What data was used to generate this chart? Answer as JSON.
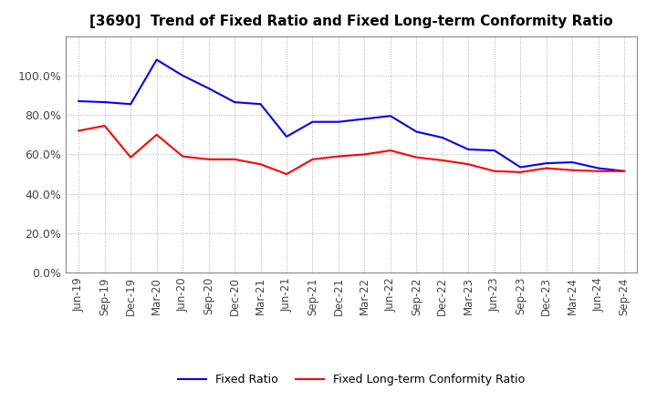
{
  "title": "[3690]  Trend of Fixed Ratio and Fixed Long-term Conformity Ratio",
  "x_labels": [
    "Jun-19",
    "Sep-19",
    "Dec-19",
    "Mar-20",
    "Jun-20",
    "Sep-20",
    "Dec-20",
    "Mar-21",
    "Jun-21",
    "Sep-21",
    "Dec-21",
    "Mar-22",
    "Jun-22",
    "Sep-22",
    "Dec-22",
    "Mar-23",
    "Jun-23",
    "Sep-23",
    "Dec-23",
    "Mar-24",
    "Jun-24",
    "Sep-24"
  ],
  "fixed_ratio": [
    87.0,
    86.5,
    85.5,
    108.0,
    100.0,
    93.5,
    86.5,
    85.5,
    69.0,
    76.5,
    76.5,
    78.0,
    79.5,
    71.5,
    68.5,
    62.5,
    62.0,
    53.5,
    55.5,
    56.0,
    53.0,
    51.5
  ],
  "fixed_lt_ratio": [
    72.0,
    74.5,
    58.5,
    70.0,
    59.0,
    57.5,
    57.5,
    55.0,
    50.0,
    57.5,
    59.0,
    60.0,
    62.0,
    58.5,
    57.0,
    55.0,
    51.5,
    51.0,
    53.0,
    52.0,
    51.5,
    51.5
  ],
  "fixed_ratio_color": "#0000FF",
  "fixed_lt_ratio_color": "#FF0000",
  "background_color": "#FFFFFF",
  "plot_bg_color": "#FFFFFF",
  "grid_color": "#AAAAAA",
  "ylim": [
    0,
    120
  ],
  "yticks": [
    0,
    20,
    40,
    60,
    80,
    100
  ],
  "legend_fixed_ratio": "Fixed Ratio",
  "legend_fixed_lt_ratio": "Fixed Long-term Conformity Ratio",
  "title_fontsize": 11,
  "tick_fontsize": 8.5,
  "ytick_fontsize": 9
}
